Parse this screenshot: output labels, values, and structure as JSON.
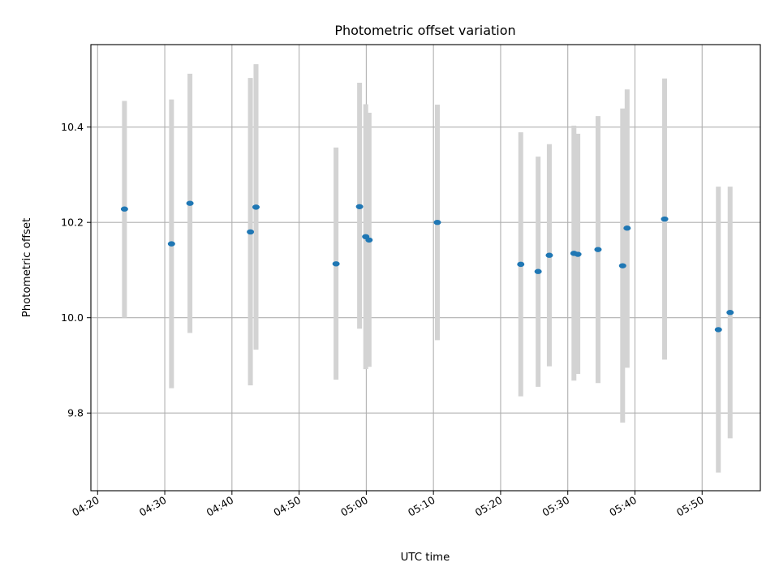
{
  "chart_data": {
    "type": "scatter",
    "title": "Photometric offset variation",
    "xlabel": "UTC time",
    "ylabel": "Photometric offset",
    "x_tick_labels": [
      "04:20",
      "04:30",
      "04:40",
      "04:50",
      "05:00",
      "05:10",
      "05:20",
      "05:30",
      "05:40",
      "05:50"
    ],
    "y_tick_labels": [
      "9.8",
      "10.0",
      "10.2",
      "10.4"
    ],
    "grid": true,
    "errorbar_color": "#d3d3d3",
    "marker_color": "#1f77b4",
    "x_unit": "UTC time (HH:MM)",
    "xlim": [
      "04:19:00",
      "05:58:40"
    ],
    "ylim": [
      9.637,
      10.573
    ],
    "points": [
      {
        "x": "04:24:00",
        "y": 10.228,
        "ylow": 10.0,
        "yhigh": 10.455
      },
      {
        "x": "04:31:00",
        "y": 10.155,
        "ylow": 9.852,
        "yhigh": 10.458
      },
      {
        "x": "04:33:45",
        "y": 10.24,
        "ylow": 9.968,
        "yhigh": 10.512
      },
      {
        "x": "04:42:45",
        "y": 10.18,
        "ylow": 9.858,
        "yhigh": 10.503
      },
      {
        "x": "04:43:35",
        "y": 10.232,
        "ylow": 9.933,
        "yhigh": 10.532
      },
      {
        "x": "04:55:30",
        "y": 10.113,
        "ylow": 9.87,
        "yhigh": 10.357
      },
      {
        "x": "04:59:00",
        "y": 10.233,
        "ylow": 9.977,
        "yhigh": 10.493
      },
      {
        "x": "04:59:55",
        "y": 10.17,
        "ylow": 9.892,
        "yhigh": 10.448
      },
      {
        "x": "05:00:25",
        "y": 10.163,
        "ylow": 9.897,
        "yhigh": 10.43
      },
      {
        "x": "05:10:35",
        "y": 10.2,
        "ylow": 9.953,
        "yhigh": 10.447
      },
      {
        "x": "05:23:00",
        "y": 10.112,
        "ylow": 9.835,
        "yhigh": 10.389
      },
      {
        "x": "05:25:35",
        "y": 10.097,
        "ylow": 9.855,
        "yhigh": 10.338
      },
      {
        "x": "05:27:15",
        "y": 10.131,
        "ylow": 9.898,
        "yhigh": 10.364
      },
      {
        "x": "05:30:55",
        "y": 10.135,
        "ylow": 9.868,
        "yhigh": 10.403
      },
      {
        "x": "05:31:30",
        "y": 10.133,
        "ylow": 9.882,
        "yhigh": 10.386
      },
      {
        "x": "05:34:30",
        "y": 10.143,
        "ylow": 9.863,
        "yhigh": 10.423
      },
      {
        "x": "05:38:10",
        "y": 10.109,
        "ylow": 9.78,
        "yhigh": 10.439
      },
      {
        "x": "05:38:50",
        "y": 10.188,
        "ylow": 9.895,
        "yhigh": 10.479
      },
      {
        "x": "05:44:25",
        "y": 10.207,
        "ylow": 9.912,
        "yhigh": 10.502
      },
      {
        "x": "05:52:25",
        "y": 9.975,
        "ylow": 9.675,
        "yhigh": 10.275
      },
      {
        "x": "05:54:10",
        "y": 10.011,
        "ylow": 9.747,
        "yhigh": 10.275
      }
    ]
  }
}
